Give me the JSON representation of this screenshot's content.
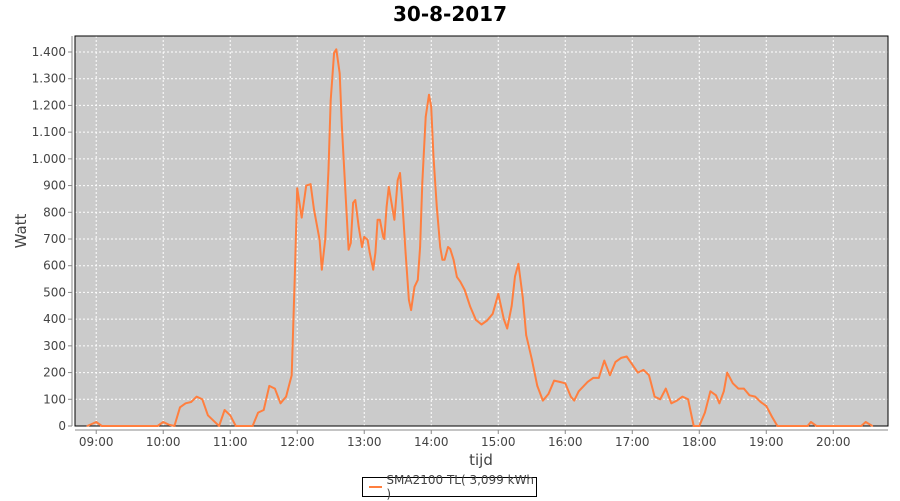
{
  "chart_data": {
    "type": "line",
    "title": "30-8-2017",
    "xlabel": "tijd",
    "ylabel": "Watt",
    "ylim": [
      0,
      1400
    ],
    "xlim": [
      "08:41",
      "20:49"
    ],
    "grid": true,
    "legend_position": "bottom",
    "plot_background": "#cbcbcb",
    "series_color": "#ff7f3f",
    "x_ticks": [
      "09:00",
      "10:00",
      "11:00",
      "12:00",
      "13:00",
      "14:00",
      "15:00",
      "16:00",
      "17:00",
      "18:00",
      "19:00",
      "20:00"
    ],
    "y_ticks": [
      {
        "v": 0,
        "label": "0"
      },
      {
        "v": 100,
        "label": "100"
      },
      {
        "v": 200,
        "label": "200"
      },
      {
        "v": 300,
        "label": "300"
      },
      {
        "v": 400,
        "label": "400"
      },
      {
        "v": 500,
        "label": "500"
      },
      {
        "v": 600,
        "label": "600"
      },
      {
        "v": 700,
        "label": "700"
      },
      {
        "v": 800,
        "label": "800"
      },
      {
        "v": 900,
        "label": "900"
      },
      {
        "v": 1000,
        "label": "1.000"
      },
      {
        "v": 1100,
        "label": "1.100"
      },
      {
        "v": 1200,
        "label": "1.200"
      },
      {
        "v": 1300,
        "label": "1.300"
      },
      {
        "v": 1400,
        "label": "1.400"
      }
    ],
    "series": [
      {
        "name": "SMA2100 TL( 3,099 kWh )",
        "x": [
          "08:52",
          "09:00",
          "09:05",
          "09:55",
          "10:00",
          "10:05",
          "10:10",
          "10:15",
          "10:20",
          "10:25",
          "10:30",
          "10:35",
          "10:40",
          "10:45",
          "10:50",
          "10:55",
          "11:00",
          "11:05",
          "11:20",
          "11:25",
          "11:30",
          "11:35",
          "11:40",
          "11:45",
          "11:50",
          "11:55",
          "11:58",
          "12:00",
          "12:04",
          "12:08",
          "12:12",
          "12:15",
          "12:20",
          "12:22",
          "12:25",
          "12:28",
          "12:30",
          "12:33",
          "12:35",
          "12:38",
          "12:40",
          "12:43",
          "12:46",
          "12:48",
          "12:50",
          "12:52",
          "12:55",
          "12:58",
          "13:00",
          "13:03",
          "13:05",
          "13:08",
          "13:10",
          "13:12",
          "13:14",
          "13:17",
          "13:18",
          "13:20",
          "13:22",
          "13:25",
          "13:27",
          "13:30",
          "13:32",
          "13:34",
          "13:37",
          "13:40",
          "13:42",
          "13:45",
          "13:48",
          "13:50",
          "13:52",
          "13:55",
          "13:58",
          "14:00",
          "14:02",
          "14:05",
          "14:08",
          "14:10",
          "14:12",
          "14:15",
          "14:17",
          "14:20",
          "14:23",
          "14:26",
          "14:30",
          "14:35",
          "14:40",
          "14:45",
          "14:50",
          "14:55",
          "15:00",
          "15:05",
          "15:08",
          "15:12",
          "15:15",
          "15:18",
          "15:22",
          "15:25",
          "15:30",
          "15:35",
          "15:40",
          "15:45",
          "15:50",
          "15:55",
          "16:00",
          "16:05",
          "16:08",
          "16:12",
          "16:20",
          "16:25",
          "16:30",
          "16:35",
          "16:40",
          "16:45",
          "16:50",
          "16:55",
          "17:00",
          "17:05",
          "17:10",
          "17:15",
          "17:20",
          "17:25",
          "17:30",
          "17:35",
          "17:40",
          "17:45",
          "17:50",
          "17:55",
          "18:00",
          "18:05",
          "18:10",
          "18:15",
          "18:18",
          "18:22",
          "18:25",
          "18:30",
          "18:35",
          "18:40",
          "18:45",
          "18:50",
          "18:55",
          "19:00",
          "19:05",
          "19:10",
          "19:37",
          "19:40",
          "19:45",
          "20:25",
          "20:29",
          "20:35"
        ],
        "y": [
          0,
          15,
          0,
          0,
          15,
          5,
          0,
          70,
          85,
          90,
          110,
          100,
          40,
          20,
          0,
          60,
          40,
          0,
          0,
          50,
          60,
          150,
          140,
          85,
          110,
          190,
          585,
          890,
          780,
          900,
          905,
          810,
          697,
          585,
          697,
          960,
          1220,
          1397,
          1410,
          1320,
          1120,
          885,
          660,
          685,
          835,
          846,
          746,
          670,
          708,
          697,
          648,
          585,
          648,
          772,
          772,
          708,
          700,
          820,
          895,
          820,
          772,
          920,
          947,
          846,
          648,
          472,
          434,
          521,
          547,
          670,
          910,
          1157,
          1240,
          1195,
          1007,
          820,
          670,
          622,
          622,
          670,
          663,
          622,
          558,
          540,
          509,
          446,
          397,
          380,
          395,
          420,
          495,
          400,
          365,
          450,
          560,
          607,
          480,
          340,
          250,
          150,
          95,
          120,
          170,
          165,
          160,
          110,
          95,
          130,
          165,
          180,
          180,
          245,
          190,
          240,
          255,
          260,
          230,
          200,
          210,
          190,
          110,
          100,
          140,
          85,
          95,
          110,
          100,
          0,
          0,
          50,
          130,
          115,
          85,
          130,
          200,
          160,
          140,
          140,
          115,
          110,
          90,
          75,
          35,
          0,
          0,
          15,
          0,
          0,
          15,
          0
        ]
      }
    ]
  }
}
